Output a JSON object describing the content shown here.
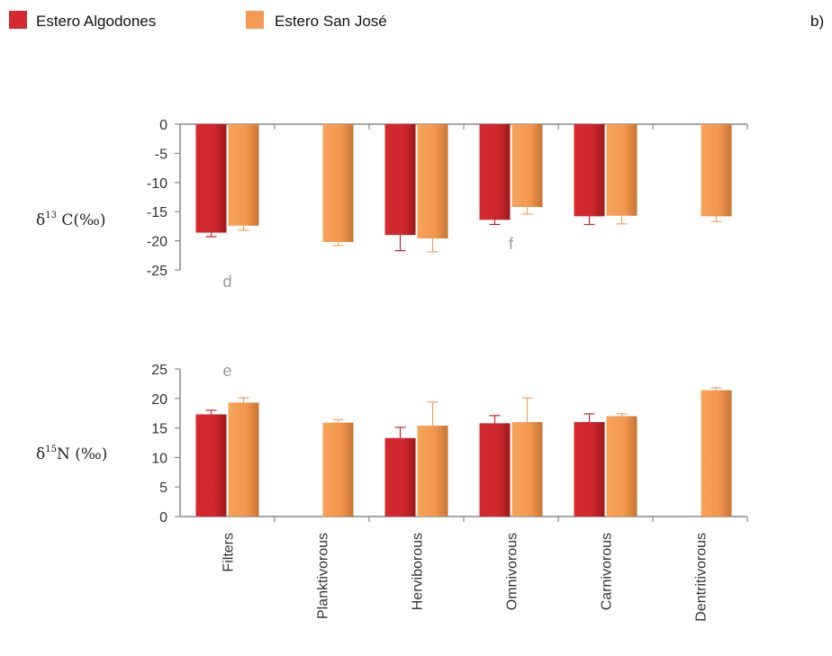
{
  "panel_tag": "b)",
  "colors": {
    "Estero Algodones": "#d42a2f",
    "Estero San José": "#f59a52",
    "error": {
      "Estero Algodones": "#c0262b",
      "Estero San José": "#f0a060"
    },
    "axis": "#8a8a8a"
  },
  "chart_data": [
    {
      "type": "bar",
      "panel": "d13C",
      "categories": [
        "Filters",
        "Planktivorous",
        "Herviborous",
        "Omnivorous",
        "Carnivorous",
        "Dentritivorous"
      ],
      "series": [
        {
          "name": "Estero Algodones",
          "values": [
            -18.6,
            null,
            -19.0,
            -16.4,
            -15.8,
            null
          ],
          "errors": [
            0.7,
            null,
            2.7,
            0.8,
            1.4,
            null
          ]
        },
        {
          "name": "Estero San José",
          "values": [
            -17.4,
            -20.2,
            -19.6,
            -14.2,
            -15.7,
            -15.8
          ],
          "errors": [
            0.8,
            0.6,
            2.3,
            1.2,
            1.4,
            0.9
          ]
        }
      ],
      "ylabel": "δ13 C(‰)",
      "ylabel_main": "δ",
      "ylabel_sup": "13",
      "ylabel_rest": " C(‰)",
      "ylim": [
        -25,
        0
      ],
      "yticks": [
        0,
        -5,
        -10,
        -15,
        -20,
        -25
      ],
      "annotations": [
        {
          "text": "d",
          "category": "Filters",
          "value": -27
        },
        {
          "text": "f",
          "category": "Omnivorous",
          "value": -20.5
        }
      ],
      "grid": false,
      "legend": "top-left"
    },
    {
      "type": "bar",
      "panel": "d15N",
      "categories": [
        "Filters",
        "Planktivorous",
        "Herviborous",
        "Omnivorous",
        "Carnivorous",
        "Dentritivorous"
      ],
      "series": [
        {
          "name": "Estero Algodones",
          "values": [
            17.3,
            null,
            13.3,
            15.8,
            16.0,
            null
          ],
          "errors": [
            0.7,
            null,
            1.8,
            1.3,
            1.4,
            null
          ]
        },
        {
          "name": "Estero San José",
          "values": [
            19.3,
            15.9,
            15.4,
            16.0,
            17.0,
            21.4
          ],
          "errors": [
            0.8,
            0.5,
            4.0,
            4.1,
            0.4,
            0.4
          ]
        }
      ],
      "ylabel": "δ15N (‰)",
      "ylabel_main": "δ",
      "ylabel_sup": "15",
      "ylabel_rest": "N (‰)",
      "ylim": [
        0,
        25
      ],
      "yticks": [
        0,
        5,
        10,
        15,
        20,
        25
      ],
      "annotations": [
        {
          "text": "e",
          "category": "Filters",
          "value": 24.7
        }
      ],
      "grid": false,
      "legend": "top-left"
    }
  ]
}
